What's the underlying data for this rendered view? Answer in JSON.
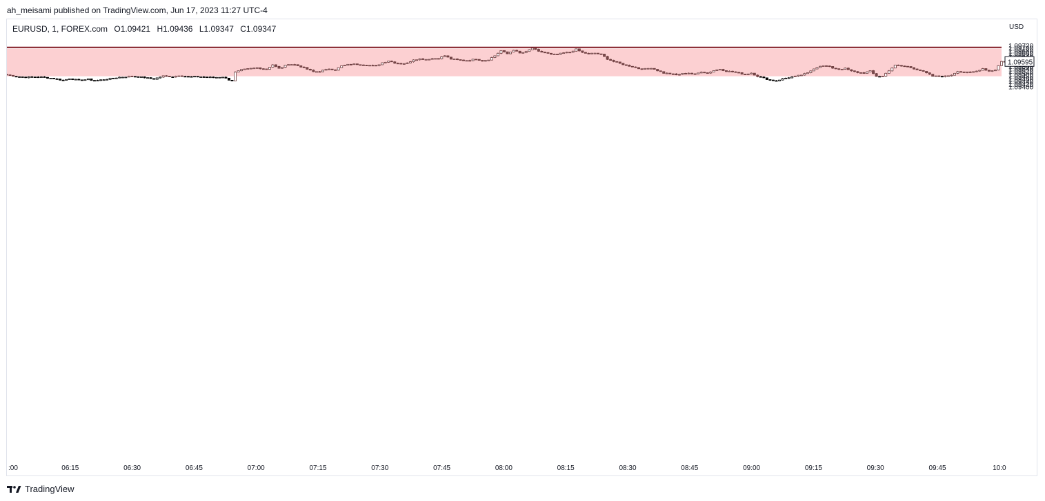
{
  "header": {
    "published_text": "ah_meisami published on TradingView.com, Jun 17, 2023 11:27 UTC-4"
  },
  "legend": {
    "symbol": "EURUSD, 1, FOREX.com",
    "open": "O1.09421",
    "high": "H1.09436",
    "low": "L1.09347",
    "close": "C1.09347"
  },
  "footer": {
    "brand": "TradingView",
    "logo_icon": "tradingview-logo-icon"
  },
  "colors": {
    "zone_fill": "#fcd0d2",
    "resistance_line": "#801922",
    "candle_body_up_in_zone": "#ffffff",
    "candle_body_down_in_zone": "#7a4a4c",
    "candle_body_down": "#000000",
    "wick_in_zone": "#6b3b3d",
    "wick": "#000000",
    "price_label_border": "#131722"
  },
  "chart_data": {
    "type": "candlestick",
    "symbol": "EURUSD",
    "timeframe": "1",
    "currency_label": "USD",
    "ylim": [
      1.094,
      1.0973
    ],
    "y_ticks": [
      "1.09720",
      "1.09700",
      "1.09680",
      "1.09660",
      "1.09640",
      "1.09620",
      "1.09600",
      "1.09580",
      "1.09560",
      "1.09540",
      "1.09520",
      "1.09500",
      "1.09480",
      "1.09460",
      "1.09440",
      "1.09420",
      "1.09400"
    ],
    "x_ticks": [
      ":00",
      "06:15",
      "06:30",
      "06:45",
      "07:00",
      "07:15",
      "07:30",
      "07:45",
      "08:00",
      "08:15",
      "08:30",
      "08:45",
      "09:00",
      "09:15",
      "09:30",
      "09:45",
      "10:0"
    ],
    "current_price_label": "1.09595",
    "zone": {
      "top": 1.09695,
      "bottom": 1.0948
    },
    "resistance_level": 1.09705,
    "anchors": [
      [
        0,
        1.09491
      ],
      [
        3,
        1.09478
      ],
      [
        6,
        1.09472
      ],
      [
        10,
        1.09476
      ],
      [
        15,
        1.09462
      ],
      [
        18,
        1.09448
      ],
      [
        20,
        1.09462
      ],
      [
        23,
        1.09448
      ],
      [
        26,
        1.09456
      ],
      [
        28,
        1.09444
      ],
      [
        32,
        1.09458
      ],
      [
        36,
        1.09472
      ],
      [
        40,
        1.0948
      ],
      [
        44,
        1.0947
      ],
      [
        47,
        1.09458
      ],
      [
        50,
        1.09482
      ],
      [
        53,
        1.09476
      ],
      [
        55,
        1.09486
      ],
      [
        58,
        1.09476
      ],
      [
        62,
        1.09476
      ],
      [
        66,
        1.0947
      ],
      [
        69,
        1.09475
      ],
      [
        71,
        1.09452
      ],
      [
        72,
        1.09445
      ],
      [
        73,
        1.0951
      ],
      [
        75,
        1.0953
      ],
      [
        78,
        1.0954
      ],
      [
        80,
        1.09546
      ],
      [
        83,
        1.09535
      ],
      [
        85,
        1.0957
      ],
      [
        87,
        1.0954
      ],
      [
        90,
        1.09575
      ],
      [
        92,
        1.0957
      ],
      [
        94,
        1.09555
      ],
      [
        96,
        1.09535
      ],
      [
        98,
        1.09515
      ],
      [
        100,
        1.09518
      ],
      [
        103,
        1.09538
      ],
      [
        105,
        1.0953
      ],
      [
        107,
        1.0956
      ],
      [
        110,
        1.09575
      ],
      [
        113,
        1.09572
      ],
      [
        116,
        1.09565
      ],
      [
        118,
        1.0956
      ],
      [
        120,
        1.09585
      ],
      [
        122,
        1.096
      ],
      [
        124,
        1.09585
      ],
      [
        126,
        1.09578
      ],
      [
        128,
        1.09582
      ],
      [
        130,
        1.0961
      ],
      [
        132,
        1.09615
      ],
      [
        134,
        1.09612
      ],
      [
        136,
        1.09618
      ],
      [
        138,
        1.0962
      ],
      [
        140,
        1.0964
      ],
      [
        142,
        1.09615
      ],
      [
        144,
        1.09608
      ],
      [
        146,
        1.09603
      ],
      [
        148,
        1.09605
      ],
      [
        150,
        1.09615
      ],
      [
        152,
        1.096
      ],
      [
        154,
        1.0961
      ],
      [
        156,
        1.0964
      ],
      [
        158,
        1.0968
      ],
      [
        160,
        1.09655
      ],
      [
        162,
        1.09685
      ],
      [
        164,
        1.0966
      ],
      [
        166,
        1.0967
      ],
      [
        168,
        1.097
      ],
      [
        170,
        1.09672
      ],
      [
        172,
        1.09665
      ],
      [
        174,
        1.0965
      ],
      [
        176,
        1.0965
      ],
      [
        178,
        1.09662
      ],
      [
        180,
        1.09668
      ],
      [
        182,
        1.0969
      ],
      [
        184,
        1.09665
      ],
      [
        186,
        1.09655
      ],
      [
        188,
        1.0966
      ],
      [
        190,
        1.0965
      ],
      [
        192,
        1.09615
      ],
      [
        194,
        1.09595
      ],
      [
        196,
        1.0958
      ],
      [
        198,
        1.09565
      ],
      [
        200,
        1.09555
      ],
      [
        202,
        1.0954
      ],
      [
        204,
        1.09537
      ],
      [
        206,
        1.09545
      ],
      [
        208,
        1.09525
      ],
      [
        210,
        1.09505
      ],
      [
        212,
        1.095
      ],
      [
        214,
        1.0949
      ],
      [
        216,
        1.095
      ],
      [
        218,
        1.09505
      ],
      [
        220,
        1.09495
      ],
      [
        222,
        1.09515
      ],
      [
        224,
        1.09505
      ],
      [
        226,
        1.09525
      ],
      [
        228,
        1.09535
      ],
      [
        230,
        1.0952
      ],
      [
        232,
        1.09515
      ],
      [
        234,
        1.09505
      ],
      [
        236,
        1.09495
      ],
      [
        238,
        1.09505
      ],
      [
        240,
        1.0948
      ],
      [
        242,
        1.09465
      ],
      [
        244,
        1.0945
      ],
      [
        246,
        1.09445
      ],
      [
        248,
        1.0946
      ],
      [
        250,
        1.0947
      ],
      [
        252,
        1.09478
      ],
      [
        254,
        1.0949
      ],
      [
        256,
        1.09505
      ],
      [
        258,
        1.0954
      ],
      [
        260,
        1.0956
      ],
      [
        262,
        1.0956
      ],
      [
        264,
        1.09545
      ],
      [
        266,
        1.09535
      ],
      [
        268,
        1.0954
      ],
      [
        270,
        1.0952
      ],
      [
        272,
        1.0951
      ],
      [
        274,
        1.09505
      ],
      [
        276,
        1.0952
      ],
      [
        278,
        1.0948
      ],
      [
        280,
        1.0948
      ],
      [
        282,
        1.09525
      ],
      [
        284,
        1.09565
      ],
      [
        286,
        1.0956
      ],
      [
        288,
        1.09555
      ],
      [
        290,
        1.0954
      ],
      [
        292,
        1.09525
      ],
      [
        294,
        1.09505
      ],
      [
        296,
        1.0948
      ],
      [
        298,
        1.0948
      ],
      [
        300,
        1.0948
      ],
      [
        302,
        1.0949
      ],
      [
        304,
        1.0952
      ],
      [
        306,
        1.0951
      ],
      [
        308,
        1.0951
      ],
      [
        310,
        1.0952
      ],
      [
        312,
        1.0954
      ],
      [
        314,
        1.0952
      ],
      [
        316,
        1.0953
      ],
      [
        318,
        1.09595
      ]
    ]
  }
}
